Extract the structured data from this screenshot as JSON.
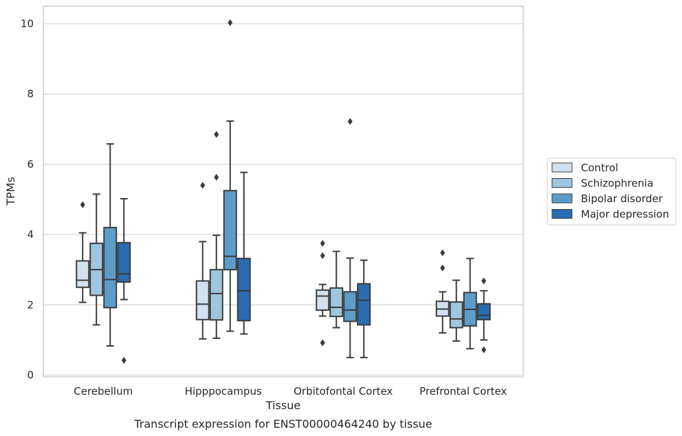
{
  "chart_data": {
    "type": "boxplot",
    "title": "",
    "caption": "Transcript expression for ENST00000464240 by tissue",
    "xlabel": "Tissue",
    "ylabel": "TPMs",
    "ylim": [
      -0.05,
      10.5
    ],
    "yticks": [
      0,
      2,
      4,
      6,
      8,
      10
    ],
    "grid": "horizontal",
    "legend_position": "right",
    "categories": [
      "Cerebellum",
      "Hipppocampus",
      "Orbitofontal Cortex",
      "Prefrontal Cortex"
    ],
    "series": [
      {
        "name": "Control",
        "color": "#d1e1f0",
        "boxes": [
          {
            "whislo": 2.07,
            "q1": 2.5,
            "med": 2.7,
            "q3": 3.25,
            "whishi": 4.05,
            "fliers": [
              4.85
            ]
          },
          {
            "whislo": 1.03,
            "q1": 1.58,
            "med": 2.02,
            "q3": 2.68,
            "whishi": 3.8,
            "fliers": [
              5.4
            ]
          },
          {
            "whislo": 1.68,
            "q1": 1.85,
            "med": 2.25,
            "q3": 2.42,
            "whishi": 2.58,
            "fliers": [
              3.75,
              3.4,
              0.92
            ]
          },
          {
            "whislo": 1.2,
            "q1": 1.68,
            "med": 1.88,
            "q3": 2.1,
            "whishi": 2.37,
            "fliers": [
              3.48,
              3.05
            ]
          }
        ]
      },
      {
        "name": "Schizophrenia",
        "color": "#9fc6de",
        "boxes": [
          {
            "whislo": 1.43,
            "q1": 2.27,
            "med": 3.0,
            "q3": 3.75,
            "whishi": 5.15,
            "fliers": []
          },
          {
            "whislo": 1.05,
            "q1": 1.57,
            "med": 2.32,
            "q3": 3.0,
            "whishi": 3.98,
            "fliers": [
              5.63,
              6.85
            ]
          },
          {
            "whislo": 1.35,
            "q1": 1.67,
            "med": 1.93,
            "q3": 2.48,
            "whishi": 3.52,
            "fliers": []
          },
          {
            "whislo": 0.97,
            "q1": 1.35,
            "med": 1.6,
            "q3": 2.08,
            "whishi": 2.7,
            "fliers": []
          }
        ]
      },
      {
        "name": "Bipolar disorder",
        "color": "#5b9cc9",
        "boxes": [
          {
            "whislo": 0.83,
            "q1": 1.92,
            "med": 2.72,
            "q3": 4.2,
            "whishi": 6.58,
            "fliers": []
          },
          {
            "whislo": 1.25,
            "q1": 3.0,
            "med": 3.38,
            "q3": 5.25,
            "whishi": 7.23,
            "fliers": [
              10.03
            ]
          },
          {
            "whislo": 0.5,
            "q1": 1.53,
            "med": 1.85,
            "q3": 2.37,
            "whishi": 3.33,
            "fliers": [
              7.22
            ]
          },
          {
            "whislo": 0.75,
            "q1": 1.4,
            "med": 1.87,
            "q3": 2.35,
            "whishi": 3.32,
            "fliers": []
          }
        ]
      },
      {
        "name": "Major depression",
        "color": "#2a6cb0",
        "boxes": [
          {
            "whislo": 2.15,
            "q1": 2.65,
            "med": 2.88,
            "q3": 3.77,
            "whishi": 5.02,
            "fliers": [
              0.42
            ]
          },
          {
            "whislo": 1.17,
            "q1": 1.55,
            "med": 2.4,
            "q3": 3.32,
            "whishi": 5.77,
            "fliers": []
          },
          {
            "whislo": 0.5,
            "q1": 1.43,
            "med": 2.13,
            "q3": 2.6,
            "whishi": 3.27,
            "fliers": []
          },
          {
            "whislo": 1.0,
            "q1": 1.58,
            "med": 1.7,
            "q3": 2.03,
            "whishi": 2.4,
            "fliers": [
              2.68,
              0.72
            ]
          }
        ]
      }
    ]
  }
}
